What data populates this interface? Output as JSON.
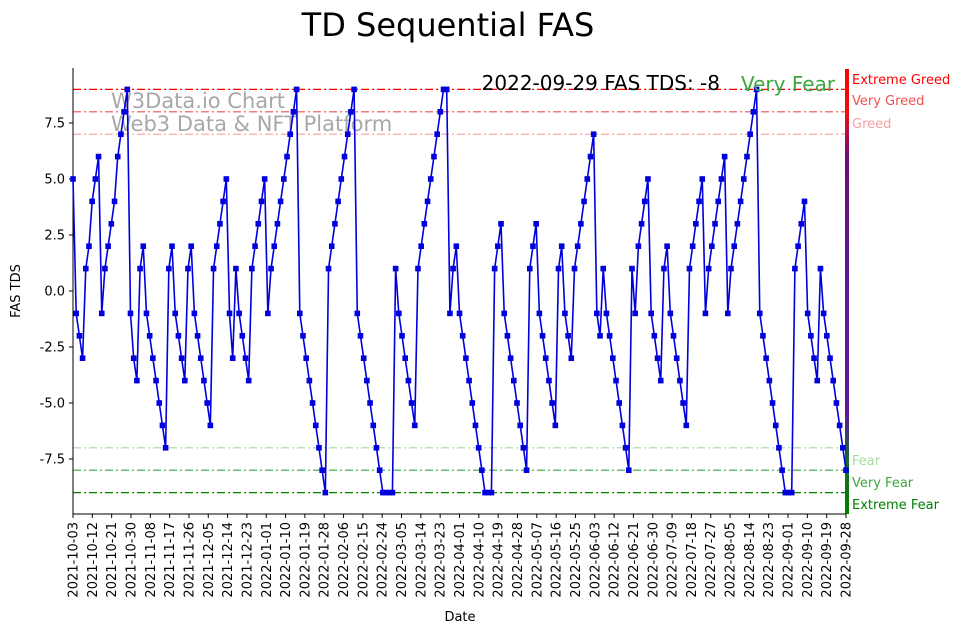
{
  "chart_data": {
    "type": "line",
    "title": "TD Sequential FAS",
    "xlabel": "Date",
    "ylabel": "FAS TDS",
    "ylim": [
      -10,
      10
    ],
    "x_range": [
      "2021-10-03",
      "2022-09-28"
    ],
    "y_ticks": [
      "-7.5",
      "-5.0",
      "-2.5",
      "0.0",
      "2.5",
      "5.0",
      "7.5"
    ],
    "x_ticks": [
      "2021-10-03",
      "2021-10-12",
      "2021-10-21",
      "2021-10-30",
      "2021-11-08",
      "2021-11-17",
      "2021-11-26",
      "2021-12-05",
      "2021-12-14",
      "2021-12-23",
      "2022-01-01",
      "2022-01-10",
      "2022-01-19",
      "2022-01-28",
      "2022-02-06",
      "2022-02-15",
      "2022-02-24",
      "2022-03-05",
      "2022-03-14",
      "2022-03-23",
      "2022-04-01",
      "2022-04-10",
      "2022-04-19",
      "2022-04-28",
      "2022-05-07",
      "2022-05-16",
      "2022-05-25",
      "2022-06-03",
      "2022-06-12",
      "2022-06-21",
      "2022-06-30",
      "2022-07-09",
      "2022-07-18",
      "2022-07-27",
      "2022-08-05",
      "2022-08-14",
      "2022-08-23",
      "2022-09-01",
      "2022-09-10",
      "2022-09-19",
      "2022-09-28"
    ],
    "annotation": {
      "prefix": "2022-09-29 FAS TDS: -8",
      "label": "Very Fear",
      "label_color": "#3fa73f"
    },
    "watermark": [
      "W3Data.io Chart",
      "Web3 Data & NFT Platform"
    ],
    "levels": [
      {
        "value": 9,
        "label": "Extreme Greed",
        "color": "#ff0000"
      },
      {
        "value": 8,
        "label": "Very Greed",
        "color": "#f05050"
      },
      {
        "value": 7,
        "label": "Greed",
        "color": "#f5a0a0"
      },
      {
        "value": -7,
        "label": "Fear",
        "color": "#a8d8a0"
      },
      {
        "value": -8,
        "label": "Very Fear",
        "color": "#3fa73f"
      },
      {
        "value": -9,
        "label": "Extreme Fear",
        "color": "#008000"
      }
    ],
    "series": [
      {
        "color": "#0000dd",
        "values": [
          5,
          -1,
          -2,
          -3,
          1,
          2,
          4,
          5,
          6,
          -1,
          1,
          2,
          3,
          4,
          6,
          7,
          8,
          9,
          -1,
          -3,
          -4,
          1,
          2,
          -1,
          -2,
          -3,
          -4,
          -5,
          -6,
          -7,
          1,
          2,
          -1,
          -2,
          -3,
          -4,
          1,
          2,
          -1,
          -2,
          -3,
          -4,
          -5,
          -6,
          1,
          2,
          3,
          4,
          5,
          -1,
          -3,
          1,
          -1,
          -2,
          -3,
          -4,
          1,
          2,
          3,
          4,
          5,
          -1,
          1,
          2,
          3,
          4,
          5,
          6,
          7,
          8,
          9,
          -1,
          -2,
          -3,
          -4,
          -5,
          -6,
          -7,
          -8,
          -9,
          1,
          2,
          3,
          4,
          5,
          6,
          7,
          8,
          9,
          -1,
          -2,
          -3,
          -4,
          -5,
          -6,
          -7,
          -8,
          -9,
          -9,
          -9,
          -9,
          1,
          -1,
          -2,
          -3,
          -4,
          -5,
          -6,
          1,
          2,
          3,
          4,
          5,
          6,
          7,
          8,
          9,
          9,
          -1,
          1,
          2,
          -1,
          -2,
          -3,
          -4,
          -5,
          -6,
          -7,
          -8,
          -9,
          -9,
          -9,
          1,
          2,
          3,
          -1,
          -2,
          -3,
          -4,
          -5,
          -6,
          -7,
          -8,
          1,
          2,
          3,
          -1,
          -2,
          -3,
          -4,
          -5,
          -6,
          1,
          2,
          -1,
          -2,
          -3,
          1,
          2,
          3,
          4,
          5,
          6,
          7,
          -1,
          -2,
          1,
          -1,
          -2,
          -3,
          -4,
          -5,
          -6,
          -7,
          -8,
          1,
          -1,
          2,
          3,
          4,
          5,
          -1,
          -2,
          -3,
          -4,
          1,
          2,
          -1,
          -2,
          -3,
          -4,
          -5,
          -6,
          1,
          2,
          3,
          4,
          5,
          -1,
          1,
          2,
          3,
          4,
          5,
          6,
          -1,
          1,
          2,
          3,
          4,
          5,
          6,
          7,
          8,
          9,
          -1,
          -2,
          -3,
          -4,
          -5,
          -6,
          -7,
          -8,
          -9,
          -9,
          -9,
          1,
          2,
          3,
          4,
          -1,
          -2,
          -3,
          -4,
          1,
          -1,
          -2,
          -3,
          -4,
          -5,
          -6,
          -7,
          -8
        ]
      }
    ]
  }
}
